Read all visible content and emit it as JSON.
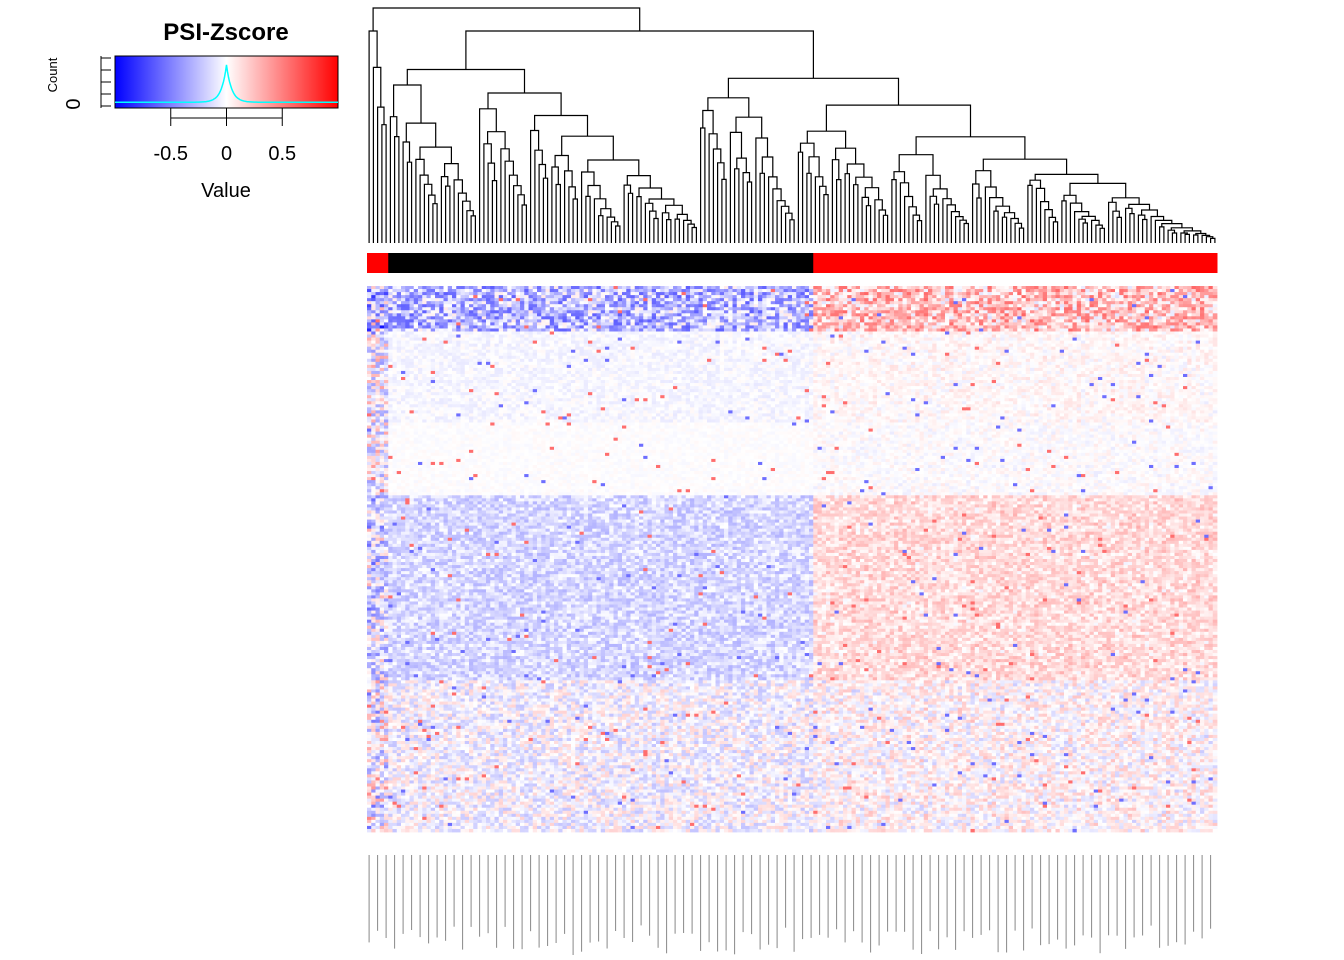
{
  "chart_data": {
    "type": "heatmap",
    "title": "PSI-Zscore",
    "color_key": {
      "title": "PSI-Zscore",
      "xlabel": "Value",
      "ylabel": "Count",
      "y_tick_labels": [
        "0"
      ],
      "x_tick_labels": [
        "-0.5",
        "0",
        "0.5"
      ],
      "x_ticks": [
        -0.5,
        0,
        0.5
      ],
      "range": [
        -1,
        1
      ],
      "colors": {
        "low": "#0000ff",
        "mid": "#ffffff",
        "high": "#ff0000",
        "density": "#00ffff"
      }
    },
    "column_dendrogram": true,
    "column_annotation": {
      "colors": [
        "#ff0000",
        "#000000",
        "#ff0000"
      ],
      "groups": [
        {
          "color": "#ff0000",
          "count": 5
        },
        {
          "color": "#000000",
          "count": 100
        },
        {
          "color": "#ff0000",
          "count": 95
        }
      ]
    },
    "n_columns": 200,
    "n_rows": 180,
    "row_labels_shown": false,
    "column_labels_legible": false
  }
}
